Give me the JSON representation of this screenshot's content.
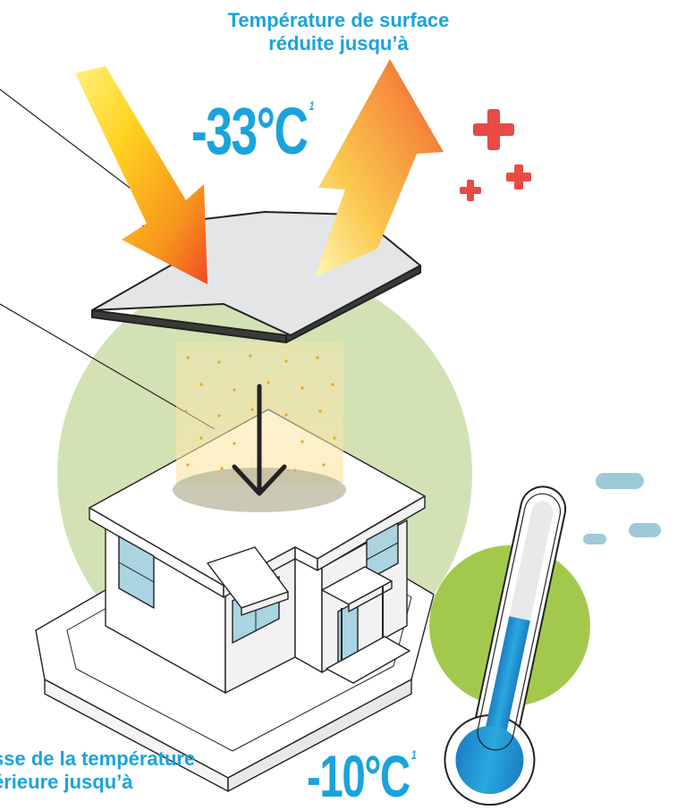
{
  "top_callout": {
    "line1": "Température de surface",
    "line2": "réduite jusqu’à",
    "value": "-33°C",
    "footnote": "1"
  },
  "bottom_callout": {
    "line1": "sse de la température",
    "line2": "érieure jusqu’à",
    "value": "-10°C",
    "footnote": "1"
  },
  "colors": {
    "accent_blue": "#1aa3dd",
    "green_circle": "#d3e2b5",
    "lime_circle": "#a3c94c",
    "plus_red": "#e94a45",
    "dash_blue": "#9ec9d9",
    "roof_gray": "#e4e5e7",
    "window_blue": "#a9d4e0"
  },
  "icons": [
    "incoming-sun-arrow-icon",
    "reflected-heat-arrow-icon",
    "plus-icon",
    "thermometer-icon",
    "down-arrow-icon"
  ]
}
